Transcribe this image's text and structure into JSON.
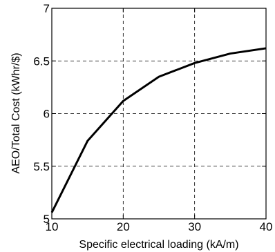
{
  "chart_data": {
    "type": "line",
    "title": "",
    "xlabel": "Specific electrical loading (kA/m)",
    "ylabel": "AEO/Total Cost (kWhr/$)",
    "xlim": [
      10,
      40
    ],
    "ylim": [
      5,
      7
    ],
    "xticks": [
      10,
      20,
      30,
      40
    ],
    "yticks": [
      5,
      5.5,
      6,
      6.5,
      7
    ],
    "xtick_labels": [
      "10",
      "20",
      "30",
      "40"
    ],
    "ytick_labels": [
      "5",
      "5.5",
      "6",
      "6.5",
      "7"
    ],
    "grid": true,
    "line_color": "#000000",
    "series": [
      {
        "x": [
          10,
          15,
          20,
          25,
          30,
          35,
          40
        ],
        "values": [
          5.06,
          5.74,
          6.12,
          6.35,
          6.48,
          6.57,
          6.62
        ]
      }
    ]
  }
}
